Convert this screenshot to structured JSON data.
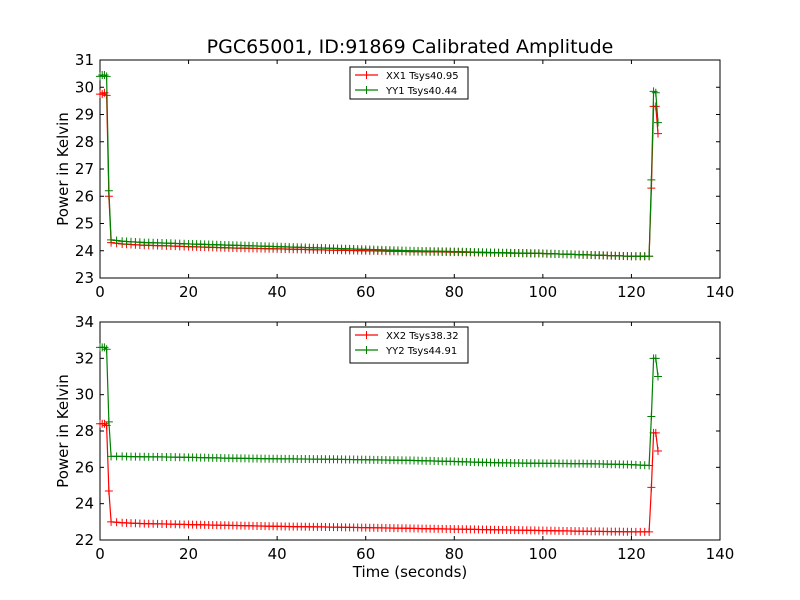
{
  "chart_data": [
    {
      "type": "line",
      "title": "PGC65001, ID:91869 Calibrated Amplitude",
      "xlabel": "",
      "ylabel": "Power in Kelvin",
      "xlim": [
        0,
        140
      ],
      "ylim": [
        23,
        31
      ],
      "xticks": [
        0,
        20,
        40,
        60,
        80,
        100,
        120,
        140
      ],
      "yticks": [
        23,
        24,
        25,
        26,
        27,
        28,
        29,
        30,
        31
      ],
      "legend_position": "top-center",
      "grid": false,
      "series": [
        {
          "name": "XX1 Tsys40.95",
          "color": "#ff0000",
          "x": [
            0,
            0.5,
            1,
            1.5,
            2,
            2.5,
            5,
            10,
            15,
            20,
            30,
            40,
            50,
            60,
            70,
            80,
            90,
            100,
            110,
            120,
            124,
            124.5,
            125,
            125.5,
            126
          ],
          "y": [
            29.75,
            29.75,
            29.8,
            29.7,
            26.0,
            24.3,
            24.25,
            24.2,
            24.18,
            24.15,
            24.1,
            24.07,
            24.03,
            24.0,
            23.97,
            23.95,
            23.92,
            23.9,
            23.85,
            23.8,
            23.8,
            26.3,
            29.3,
            29.3,
            28.3
          ]
        },
        {
          "name": "YY1 Tsys40.44",
          "color": "#008000",
          "x": [
            0,
            0.5,
            1,
            1.5,
            2,
            2.5,
            5,
            10,
            15,
            20,
            30,
            40,
            50,
            60,
            70,
            80,
            90,
            100,
            110,
            120,
            124,
            124.5,
            125,
            125.5,
            126
          ],
          "y": [
            30.4,
            30.45,
            30.45,
            30.4,
            26.2,
            24.4,
            24.35,
            24.3,
            24.28,
            24.25,
            24.2,
            24.15,
            24.1,
            24.05,
            24.0,
            23.97,
            23.93,
            23.9,
            23.85,
            23.8,
            23.8,
            26.6,
            29.85,
            29.8,
            28.7
          ]
        }
      ]
    },
    {
      "type": "line",
      "title": "",
      "xlabel": "Time (seconds)",
      "ylabel": "Power in Kelvin",
      "xlim": [
        0,
        140
      ],
      "ylim": [
        22,
        34
      ],
      "xticks": [
        0,
        20,
        40,
        60,
        80,
        100,
        120,
        140
      ],
      "yticks": [
        22,
        24,
        26,
        28,
        30,
        32,
        34
      ],
      "legend_position": "top-center",
      "grid": false,
      "series": [
        {
          "name": "XX2 Tsys38.32",
          "color": "#ff0000",
          "x": [
            0,
            0.5,
            1,
            1.5,
            2,
            2.5,
            5,
            10,
            15,
            20,
            30,
            40,
            50,
            60,
            70,
            80,
            90,
            100,
            110,
            120,
            124,
            124.5,
            125,
            125.5,
            126
          ],
          "y": [
            28.4,
            28.4,
            28.4,
            28.3,
            24.7,
            23.0,
            22.95,
            22.9,
            22.88,
            22.85,
            22.8,
            22.75,
            22.72,
            22.68,
            22.64,
            22.6,
            22.56,
            22.52,
            22.48,
            22.45,
            22.45,
            24.9,
            27.9,
            27.9,
            26.9
          ]
        },
        {
          "name": "YY2 Tsys44.91",
          "color": "#008000",
          "x": [
            0,
            0.5,
            1,
            1.5,
            2,
            2.5,
            5,
            10,
            15,
            20,
            30,
            40,
            50,
            60,
            70,
            80,
            90,
            100,
            110,
            120,
            124,
            124.5,
            125,
            125.5,
            126
          ],
          "y": [
            32.6,
            32.6,
            32.6,
            32.5,
            28.5,
            26.6,
            26.6,
            26.58,
            26.57,
            26.55,
            26.5,
            26.47,
            26.45,
            26.42,
            26.38,
            26.32,
            26.25,
            26.22,
            26.2,
            26.15,
            26.1,
            28.8,
            32.0,
            32.0,
            31.0
          ]
        }
      ]
    }
  ]
}
